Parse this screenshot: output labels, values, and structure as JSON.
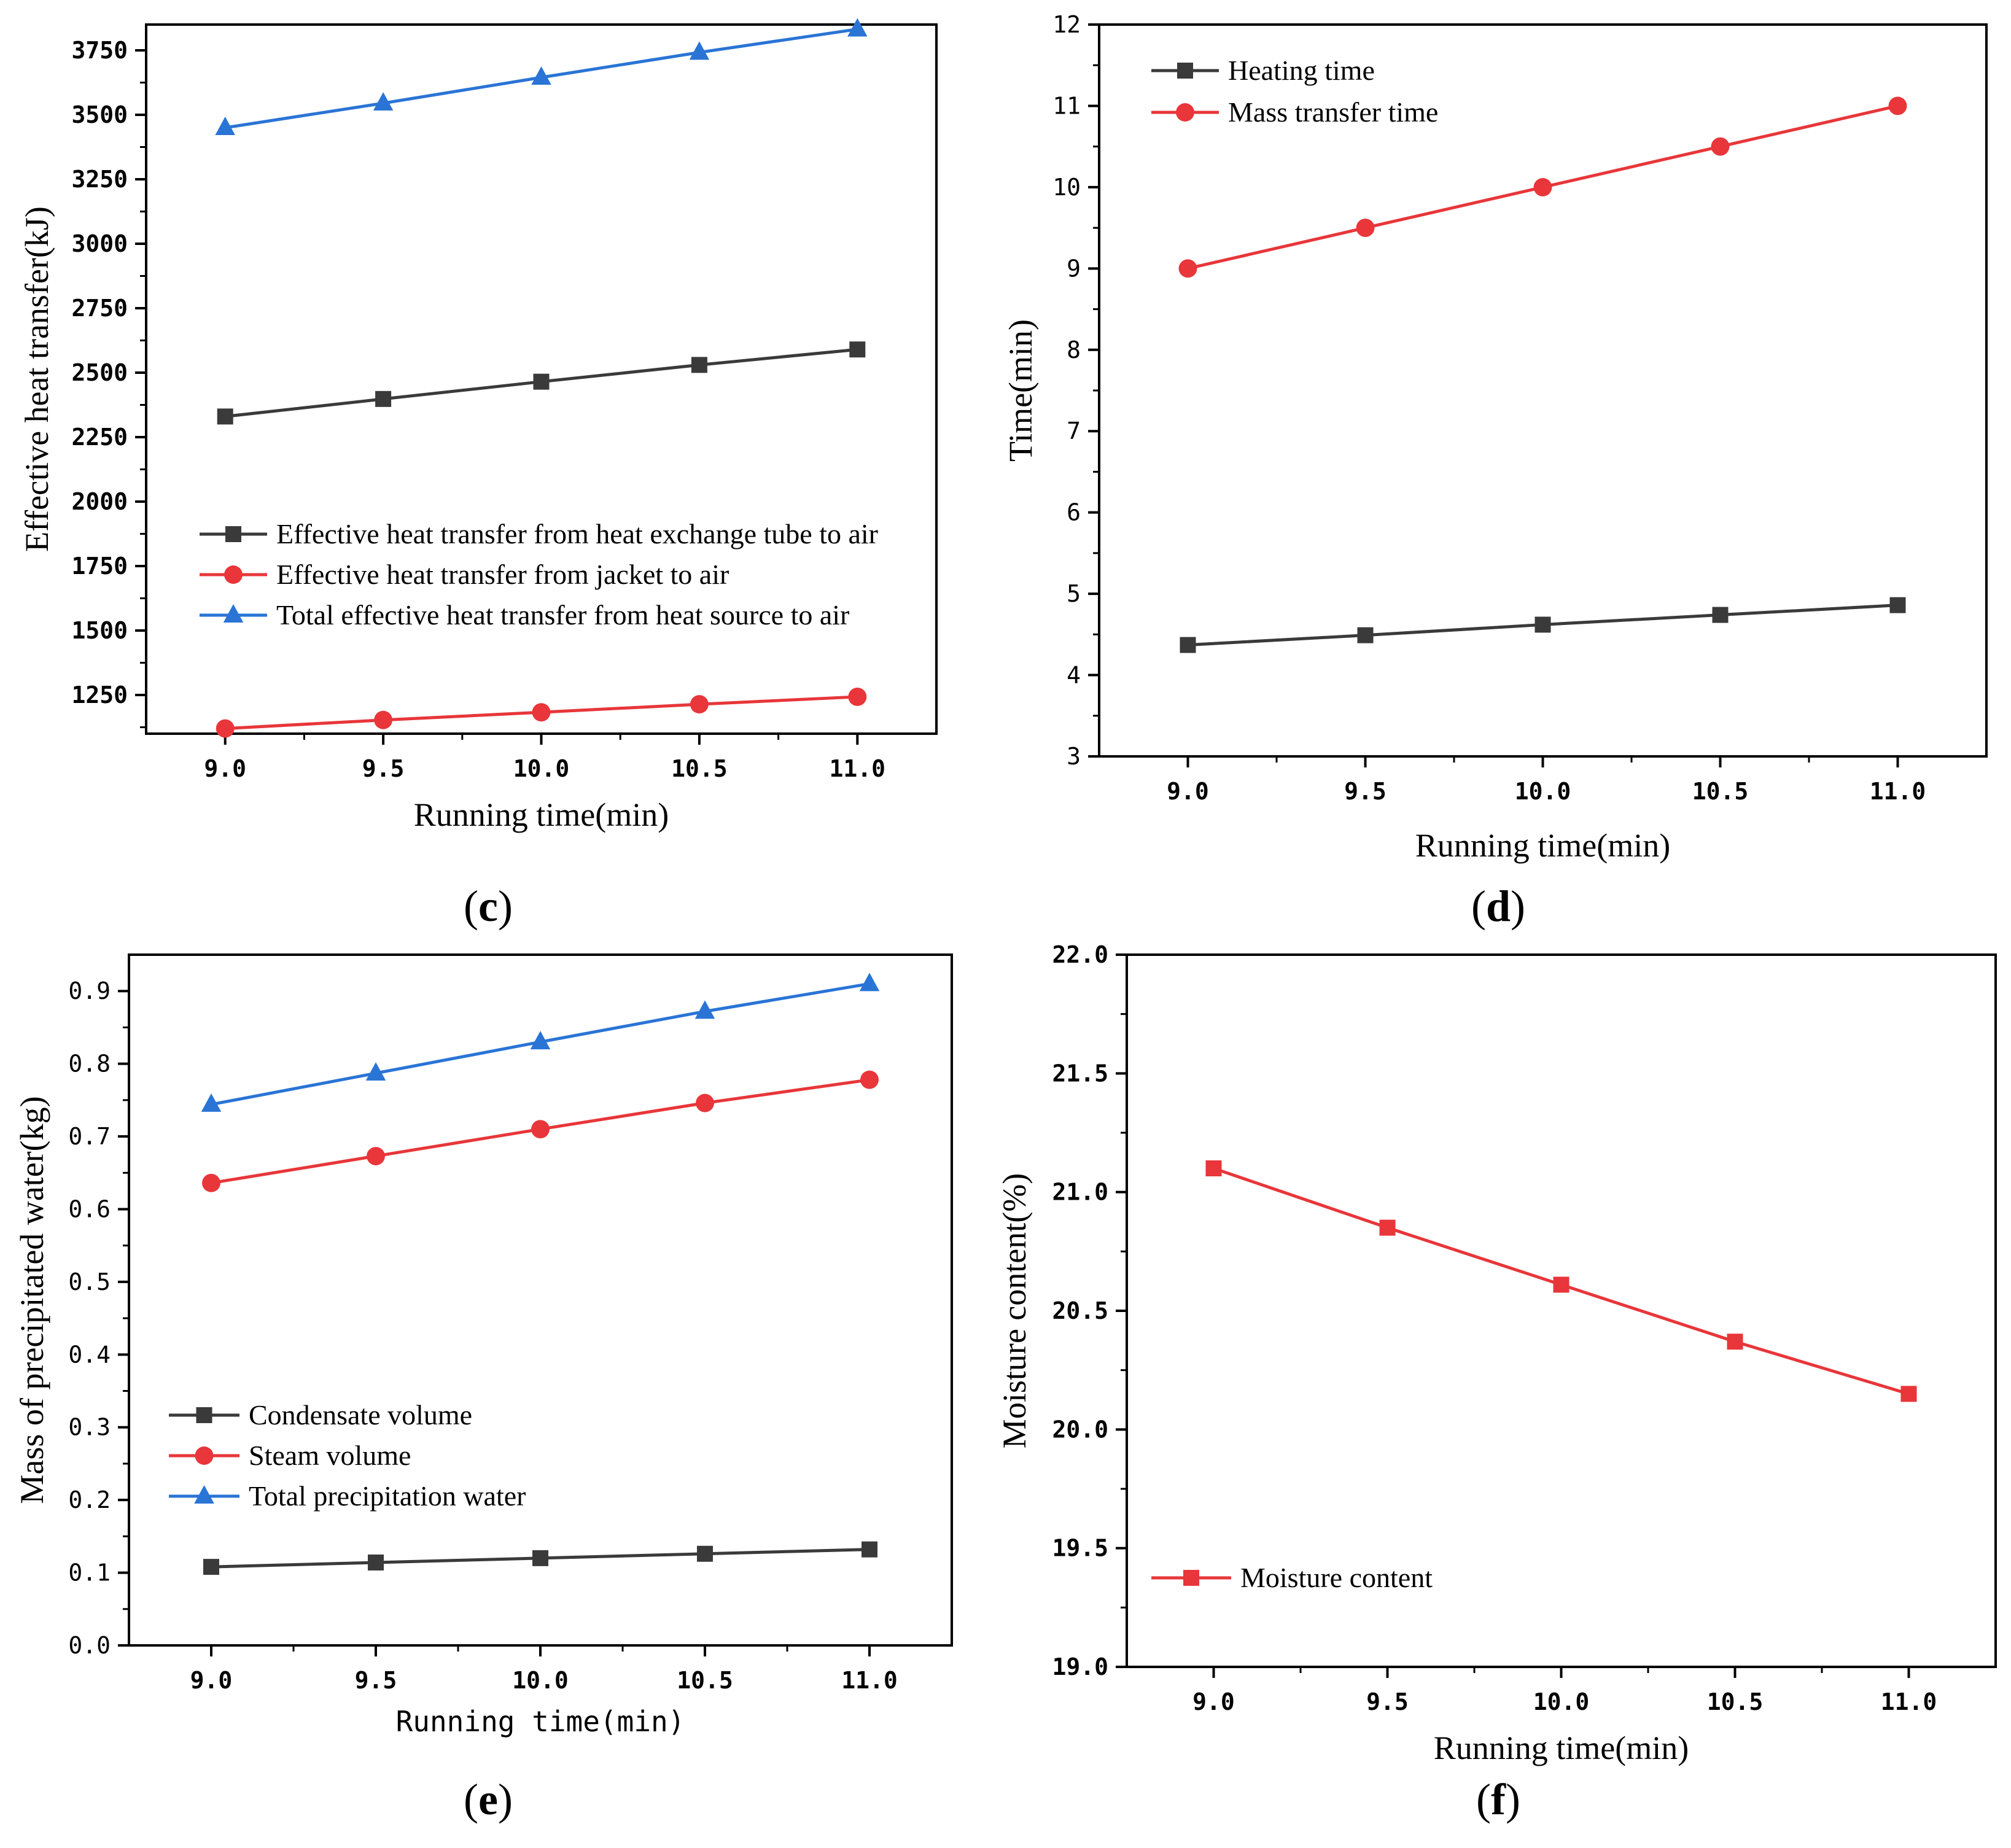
{
  "panel_labels": [
    "(c)",
    "(d)",
    "(e)",
    "(f)"
  ],
  "colors": {
    "black_series": "#3a3a3a",
    "red_series": "#e8363a",
    "blue_series": "#2a74d6",
    "moisture_series": "#e8363a"
  },
  "chart_data": [
    {
      "id": "c",
      "type": "line",
      "title": "",
      "xlabel": "Running time(min)",
      "ylabel": "Effective heat transfer(kJ)",
      "xlim": [
        8.75,
        11.25
      ],
      "ylim": [
        1100,
        3850
      ],
      "xticks": [
        9.0,
        9.5,
        10.0,
        10.5,
        11.0
      ],
      "xtick_labels": [
        "9.0",
        "9.5",
        "10.0",
        "10.5",
        "11.0"
      ],
      "yticks": [
        1250,
        1500,
        1750,
        2000,
        2250,
        2500,
        2750,
        3000,
        3250,
        3500,
        3750
      ],
      "ytick_labels": [
        "1250",
        "1500",
        "1750",
        "2000",
        "2250",
        "2500",
        "2750",
        "3000",
        "3250",
        "3500",
        "3750"
      ],
      "x": [
        9.0,
        9.5,
        10.0,
        10.5,
        11.0
      ],
      "series": [
        {
          "name": "Effective heat transfer from heat exchange tube to air",
          "values": [
            2330,
            2398,
            2465,
            2530,
            2590
          ],
          "marker": "square",
          "color": "#3a3a3a"
        },
        {
          "name": "Effective heat transfer from jacket to air",
          "values": [
            1120,
            1153,
            1183,
            1214,
            1243
          ],
          "marker": "circle",
          "color": "#e8363a"
        },
        {
          "name": "Total effective heat transfer from heat source to air",
          "values": [
            3450,
            3545,
            3645,
            3742,
            3832
          ],
          "marker": "triangle",
          "color": "#2a74d6"
        }
      ],
      "legend": "center-left"
    },
    {
      "id": "d",
      "type": "line",
      "title": "",
      "xlabel": "Running time(min)",
      "ylabel": "Time(min)",
      "xlim": [
        8.75,
        11.25
      ],
      "ylim": [
        3,
        12
      ],
      "xticks": [
        9.0,
        9.5,
        10.0,
        10.5,
        11.0
      ],
      "xtick_labels": [
        "9.0",
        "9.5",
        "10.0",
        "10.5",
        "11.0"
      ],
      "yticks": [
        3,
        4,
        5,
        6,
        7,
        8,
        9,
        10,
        11,
        12
      ],
      "ytick_labels": [
        "3",
        "4",
        "5",
        "6",
        "7",
        "8",
        "9",
        "10",
        "11",
        "12"
      ],
      "x": [
        9.0,
        9.5,
        10.0,
        10.5,
        11.0
      ],
      "series": [
        {
          "name": "Heating time",
          "values": [
            4.37,
            4.49,
            4.62,
            4.74,
            4.86
          ],
          "marker": "square",
          "color": "#3a3a3a"
        },
        {
          "name": "Mass transfer time",
          "values": [
            9.0,
            9.5,
            10.0,
            10.5,
            11.0
          ],
          "marker": "circle",
          "color": "#e8363a"
        }
      ],
      "legend": "top-left"
    },
    {
      "id": "e",
      "type": "line",
      "title": "",
      "xlabel": "Running time(min)",
      "ylabel": "Mass of precipitated water(kg)",
      "xlim": [
        8.75,
        11.25
      ],
      "ylim": [
        0.0,
        0.95
      ],
      "xticks": [
        9.0,
        9.5,
        10.0,
        10.5,
        11.0
      ],
      "xtick_labels": [
        "9.0",
        "9.5",
        "10.0",
        "10.5",
        "11.0"
      ],
      "yticks": [
        0.0,
        0.1,
        0.2,
        0.3,
        0.4,
        0.5,
        0.6,
        0.7,
        0.8,
        0.9
      ],
      "ytick_labels": [
        "0.0",
        "0.1",
        "0.2",
        "0.3",
        "0.4",
        "0.5",
        "0.6",
        "0.7",
        "0.8",
        "0.9"
      ],
      "x": [
        9.0,
        9.5,
        10.0,
        10.5,
        11.0
      ],
      "series": [
        {
          "name": "Condensate volume",
          "values": [
            0.108,
            0.114,
            0.12,
            0.126,
            0.132
          ],
          "marker": "square",
          "color": "#3a3a3a"
        },
        {
          "name": "Steam volume",
          "values": [
            0.636,
            0.673,
            0.71,
            0.746,
            0.778
          ],
          "marker": "circle",
          "color": "#e8363a"
        },
        {
          "name": "Total precipitation water",
          "values": [
            0.744,
            0.787,
            0.83,
            0.872,
            0.91
          ],
          "marker": "triangle",
          "color": "#2a74d6"
        }
      ],
      "legend": "bottom-left"
    },
    {
      "id": "f",
      "type": "line",
      "title": "",
      "xlabel": "Running time(min)",
      "ylabel": "Moisture content(%)",
      "xlim": [
        8.75,
        11.25
      ],
      "ylim": [
        19.0,
        22.0
      ],
      "xticks": [
        9.0,
        9.5,
        10.0,
        10.5,
        11.0
      ],
      "xtick_labels": [
        "9.0",
        "9.5",
        "10.0",
        "10.5",
        "11.0"
      ],
      "yticks": [
        19.0,
        19.5,
        20.0,
        20.5,
        21.0,
        21.5,
        22.0
      ],
      "ytick_labels": [
        "19.0",
        "19.5",
        "20.0",
        "20.5",
        "21.0",
        "21.5",
        "22.0"
      ],
      "x": [
        9.0,
        9.5,
        10.0,
        10.5,
        11.0
      ],
      "series": [
        {
          "name": "Moisture content",
          "values": [
            21.1,
            20.85,
            20.61,
            20.37,
            20.15
          ],
          "marker": "square",
          "color": "#e8363a"
        }
      ],
      "legend": "bottom-left"
    }
  ]
}
